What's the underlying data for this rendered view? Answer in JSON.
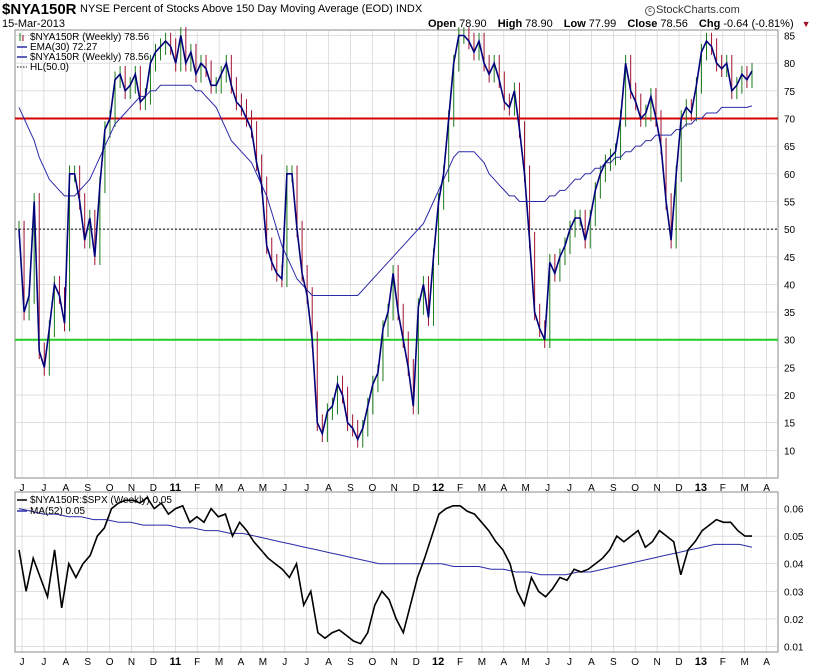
{
  "header": {
    "symbol": "$NYA150R",
    "description": "NYSE Percent of Stocks Above 150 Day Moving Average (EOD)  INDX",
    "date": "15-Mar-2013",
    "brand": "StockCharts.com",
    "brand_mark": "c",
    "open_label": "Open",
    "open": "78.90",
    "high_label": "High",
    "high": "78.90",
    "low_label": "Low",
    "low": "77.99",
    "close_label": "Close",
    "close": "78.56",
    "chg_label": "Chg",
    "chg": "-0.64 (-0.81%)",
    "chg_arrow": "▼"
  },
  "colors": {
    "price_up": "#1a7a1a",
    "price_down": "#a01030",
    "price_line": "#00007a",
    "ema": "#2b2ba8",
    "line70": "#d40000",
    "line30": "#22cc22",
    "ratio": "#000000",
    "ratio_ma": "#2b2ba8",
    "grid": "#cccccc"
  },
  "legend_main": [
    {
      "icon": "bar-glyph",
      "text": "$NYA150R (Weekly) 78.56"
    },
    {
      "icon": "line",
      "text": "EMA(30) 72.27"
    },
    {
      "icon": "line",
      "text": "$NYA150R (Weekly) 78.56"
    },
    {
      "icon": "dots",
      "text": "HL(50.0)"
    }
  ],
  "legend_lower": [
    {
      "icon": "line",
      "text": "$NYA150R:$SPX (Weekly) 0.05"
    },
    {
      "icon": "line",
      "text": "MA(52) 0.05"
    }
  ],
  "chart_data": [
    {
      "type": "line",
      "title": "$NYA150R NYSE Percent of Stocks Above 150 Day Moving Average (EOD) INDX",
      "x_ticks": [
        "J",
        "J",
        "A",
        "S",
        "O",
        "N",
        "D",
        "11",
        "F",
        "M",
        "A",
        "M",
        "J",
        "J",
        "A",
        "S",
        "O",
        "N",
        "D",
        "12",
        "F",
        "M",
        "A",
        "M",
        "J",
        "J",
        "A",
        "S",
        "O",
        "N",
        "D",
        "13",
        "F",
        "M",
        "A"
      ],
      "ylim": [
        5,
        86
      ],
      "y_ticks": [
        10,
        15,
        20,
        25,
        30,
        35,
        40,
        45,
        50,
        55,
        60,
        65,
        70,
        75,
        80,
        85
      ],
      "reference_lines": [
        70,
        50,
        30
      ],
      "series": [
        {
          "name": "$NYA150R (Weekly)",
          "values": [
            50,
            35,
            38,
            55,
            28,
            25,
            32,
            40,
            38,
            33,
            60,
            60,
            55,
            48,
            52,
            45,
            58,
            68,
            70,
            77,
            78,
            75,
            76,
            78,
            73,
            74,
            80,
            82,
            83,
            84,
            83,
            80,
            85,
            80,
            82,
            78,
            80,
            79,
            76,
            76,
            78,
            80,
            76,
            73,
            72,
            70,
            68,
            62,
            58,
            47,
            44,
            42,
            41,
            60,
            60,
            50,
            42,
            38,
            30,
            15,
            13,
            17,
            18,
            22,
            20,
            15,
            14,
            12,
            14,
            18,
            22,
            24,
            32,
            35,
            42,
            35,
            30,
            25,
            18,
            36,
            40,
            34,
            45,
            55,
            60,
            70,
            80,
            85,
            85,
            84,
            82,
            84,
            80,
            78,
            80,
            77,
            73,
            72,
            75,
            68,
            60,
            48,
            35,
            32,
            30,
            44,
            42,
            45,
            47,
            50,
            52,
            52,
            48,
            52,
            57,
            60,
            62,
            63,
            64,
            70,
            80,
            75,
            73,
            70,
            71,
            74,
            70,
            65,
            55,
            48,
            60,
            70,
            72,
            71,
            76,
            82,
            84,
            83,
            80,
            79,
            80,
            75,
            76,
            78,
            77,
            78.56
          ]
        },
        {
          "name": "EMA(30)",
          "values": [
            72,
            70,
            68,
            66,
            63,
            61,
            59,
            58,
            57,
            56,
            56,
            56,
            57,
            58,
            59,
            61,
            63,
            65,
            67,
            69,
            70,
            71,
            72,
            73,
            74,
            74,
            75,
            75,
            76,
            76,
            76,
            76,
            76,
            76,
            76,
            75,
            75,
            74,
            73,
            72,
            70,
            68,
            66,
            65,
            64,
            63,
            62,
            60,
            58,
            56,
            53,
            50,
            47,
            45,
            43,
            41,
            40,
            39,
            38,
            38,
            38,
            38,
            38,
            38,
            38,
            38,
            38,
            38,
            39,
            40,
            41,
            42,
            43,
            44,
            45,
            46,
            47,
            48,
            49,
            50,
            51,
            53,
            55,
            57,
            59,
            61,
            63,
            64,
            64,
            64,
            64,
            63,
            62,
            60,
            59,
            58,
            57,
            56,
            56,
            55,
            55,
            55,
            55,
            55,
            55,
            56,
            56,
            57,
            57,
            58,
            59,
            59,
            60,
            60,
            61,
            61,
            62,
            62,
            63,
            63,
            64,
            64,
            65,
            65,
            66,
            66,
            67,
            67,
            67,
            67,
            68,
            68,
            69,
            69,
            70,
            70,
            71,
            71,
            71,
            72,
            72,
            72,
            72,
            72,
            72,
            72.27
          ]
        }
      ]
    },
    {
      "type": "line",
      "title": "$NYA150R:$SPX (Weekly)",
      "ylim": [
        0.008,
        0.066
      ],
      "y_ticks": [
        0.01,
        0.02,
        0.03,
        0.04,
        0.05,
        0.06
      ],
      "series": [
        {
          "name": "$NYA150R:$SPX (Weekly)",
          "values": [
            0.045,
            0.03,
            0.042,
            0.035,
            0.028,
            0.045,
            0.024,
            0.04,
            0.035,
            0.04,
            0.043,
            0.05,
            0.053,
            0.06,
            0.062,
            0.063,
            0.063,
            0.062,
            0.064,
            0.06,
            0.062,
            0.058,
            0.06,
            0.061,
            0.055,
            0.057,
            0.055,
            0.06,
            0.057,
            0.058,
            0.05,
            0.055,
            0.052,
            0.048,
            0.045,
            0.042,
            0.04,
            0.038,
            0.035,
            0.04,
            0.025,
            0.03,
            0.015,
            0.013,
            0.015,
            0.016,
            0.014,
            0.012,
            0.011,
            0.015,
            0.025,
            0.03,
            0.027,
            0.02,
            0.015,
            0.025,
            0.035,
            0.042,
            0.05,
            0.058,
            0.06,
            0.061,
            0.061,
            0.059,
            0.058,
            0.055,
            0.052,
            0.048,
            0.045,
            0.04,
            0.03,
            0.025,
            0.035,
            0.03,
            0.028,
            0.031,
            0.035,
            0.034,
            0.038,
            0.037,
            0.038,
            0.04,
            0.042,
            0.045,
            0.05,
            0.048,
            0.05,
            0.052,
            0.046,
            0.048,
            0.052,
            0.05,
            0.048,
            0.036,
            0.045,
            0.048,
            0.052,
            0.054,
            0.056,
            0.055,
            0.055,
            0.052,
            0.05,
            0.05
          ]
        },
        {
          "name": "MA(52)",
          "values": [
            0.06,
            0.059,
            0.058,
            0.058,
            0.057,
            0.057,
            0.056,
            0.056,
            0.055,
            0.055,
            0.054,
            0.054,
            0.054,
            0.053,
            0.053,
            0.052,
            0.052,
            0.051,
            0.051,
            0.05,
            0.049,
            0.048,
            0.047,
            0.046,
            0.045,
            0.044,
            0.043,
            0.042,
            0.041,
            0.04,
            0.04,
            0.04,
            0.04,
            0.04,
            0.04,
            0.039,
            0.039,
            0.039,
            0.038,
            0.038,
            0.037,
            0.037,
            0.036,
            0.036,
            0.036,
            0.037,
            0.037,
            0.038,
            0.039,
            0.04,
            0.041,
            0.042,
            0.043,
            0.044,
            0.045,
            0.046,
            0.047,
            0.047,
            0.047,
            0.046
          ]
        }
      ]
    }
  ]
}
